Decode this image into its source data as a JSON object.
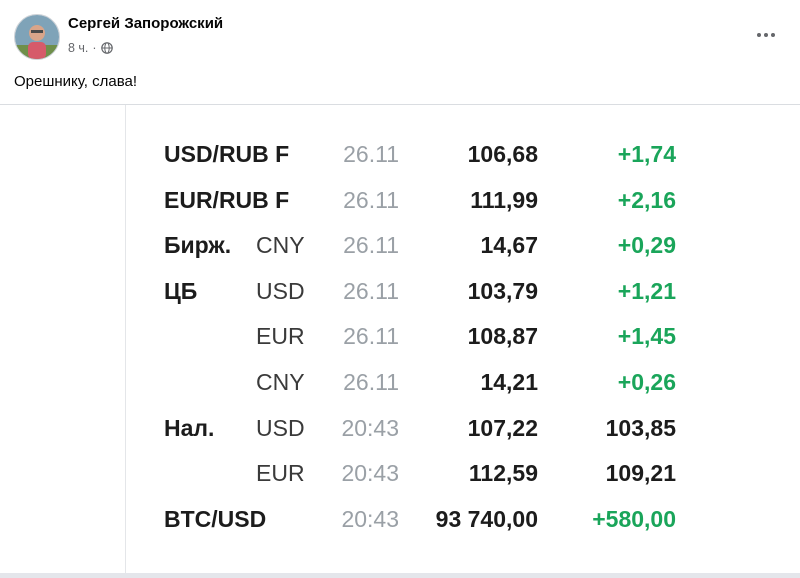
{
  "post": {
    "author": "Сергей Запорожский",
    "time": "8 ч.",
    "separator": "·",
    "text": "Орешнику, слава!"
  },
  "rates": [
    {
      "label": "USD/RUB F",
      "sub": "",
      "date": "26.11",
      "value": "106,68",
      "change": "+1,74",
      "change_color": "#1aa55a"
    },
    {
      "label": "EUR/RUB F",
      "sub": "",
      "date": "26.11",
      "value": "111,99",
      "change": "+2,16",
      "change_color": "#1aa55a"
    },
    {
      "label": "Бирж.",
      "sub": "CNY",
      "date": "26.11",
      "value": "14,67",
      "change": "+0,29",
      "change_color": "#1aa55a"
    },
    {
      "label": "ЦБ",
      "sub": "USD",
      "date": "26.11",
      "value": "103,79",
      "change": "+1,21",
      "change_color": "#1aa55a"
    },
    {
      "label": "",
      "sub": "EUR",
      "date": "26.11",
      "value": "108,87",
      "change": "+1,45",
      "change_color": "#1aa55a"
    },
    {
      "label": "",
      "sub": "CNY",
      "date": "26.11",
      "value": "14,21",
      "change": "+0,26",
      "change_color": "#1aa55a"
    },
    {
      "label": "Нал.",
      "sub": "USD",
      "date": "20:43",
      "value": "107,22",
      "change": "103,85",
      "change_color": "#1c1c1c"
    },
    {
      "label": "",
      "sub": "EUR",
      "date": "20:43",
      "value": "112,59",
      "change": "109,21",
      "change_color": "#1c1c1c"
    },
    {
      "label": "BTC/USD",
      "sub": "",
      "date": "20:43",
      "value": "93 740,00",
      "change": "+580,00",
      "change_color": "#1aa55a"
    }
  ]
}
